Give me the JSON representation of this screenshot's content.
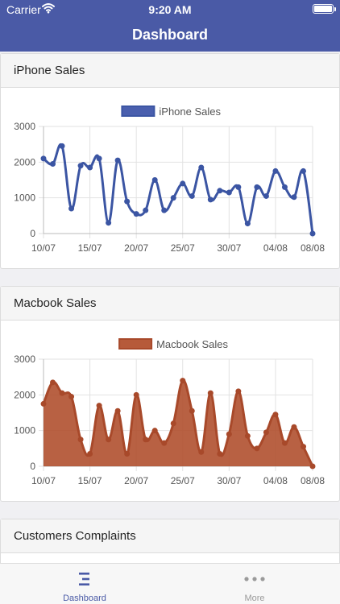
{
  "status_bar": {
    "carrier": "Carrier",
    "time": "9:20 AM"
  },
  "nav": {
    "title": "Dashboard"
  },
  "cards": {
    "iphone": {
      "title": "iPhone Sales"
    },
    "macbook": {
      "title": "Macbook Sales"
    },
    "complaints": {
      "title": "Customers Complaints"
    }
  },
  "tabs": {
    "dashboard": "Dashboard",
    "more": "More"
  },
  "colors": {
    "nav_bar": "#4a5aa6",
    "iphone_line": "#3b55a3",
    "macbook_fill": "#a8492a",
    "tab_active": "#4a5aa6",
    "tab_inactive": "#9a9a9a"
  },
  "icons": {
    "dashboard": "bar-list-icon",
    "more": "more-dots-icon",
    "wifi": "wifi-icon",
    "battery": "battery-icon"
  },
  "chart_data": [
    {
      "type": "line",
      "legend": "top-center",
      "grid": true,
      "ylim": [
        0,
        3000
      ],
      "y_ticks": [
        "0",
        "1000",
        "2000",
        "3000"
      ],
      "x_tick_labels": [
        "10/07",
        "15/07",
        "20/07",
        "25/07",
        "30/07",
        "04/08",
        "08/08"
      ],
      "x": [
        "10/07",
        "11/07",
        "12/07",
        "13/07",
        "14/07",
        "15/07",
        "16/07",
        "17/07",
        "18/07",
        "19/07",
        "20/07",
        "21/07",
        "22/07",
        "23/07",
        "24/07",
        "25/07",
        "26/07",
        "27/07",
        "28/07",
        "29/07",
        "30/07",
        "31/07",
        "01/08",
        "02/08",
        "03/08",
        "04/08",
        "05/08",
        "06/08",
        "07/08",
        "08/08"
      ],
      "series": [
        {
          "name": "iPhone Sales",
          "values": [
            2100,
            1950,
            2450,
            700,
            1900,
            1850,
            2100,
            300,
            2050,
            900,
            550,
            650,
            1500,
            650,
            1000,
            1400,
            1050,
            1850,
            950,
            1200,
            1150,
            1300,
            280,
            1300,
            1050,
            1750,
            1300,
            1020,
            1750,
            0
          ]
        }
      ]
    },
    {
      "type": "area",
      "legend": "top-center",
      "grid": true,
      "ylim": [
        0,
        3000
      ],
      "y_ticks": [
        "0",
        "1000",
        "2000",
        "3000"
      ],
      "x_tick_labels": [
        "10/07",
        "15/07",
        "20/07",
        "25/07",
        "30/07",
        "04/08",
        "08/08"
      ],
      "x": [
        "10/07",
        "11/07",
        "12/07",
        "13/07",
        "14/07",
        "15/07",
        "16/07",
        "17/07",
        "18/07",
        "19/07",
        "20/07",
        "21/07",
        "22/07",
        "23/07",
        "24/07",
        "25/07",
        "26/07",
        "27/07",
        "28/07",
        "29/07",
        "30/07",
        "31/07",
        "01/08",
        "02/08",
        "03/08",
        "04/08",
        "05/08",
        "06/08",
        "07/08",
        "08/08"
      ],
      "series": [
        {
          "name": "Macbook Sales",
          "values": [
            1750,
            2350,
            2050,
            1950,
            750,
            350,
            1700,
            750,
            1550,
            350,
            2000,
            750,
            1000,
            650,
            1200,
            2400,
            1550,
            400,
            2050,
            350,
            900,
            2100,
            850,
            500,
            950,
            1450,
            650,
            1100,
            550,
            0
          ]
        }
      ]
    }
  ]
}
